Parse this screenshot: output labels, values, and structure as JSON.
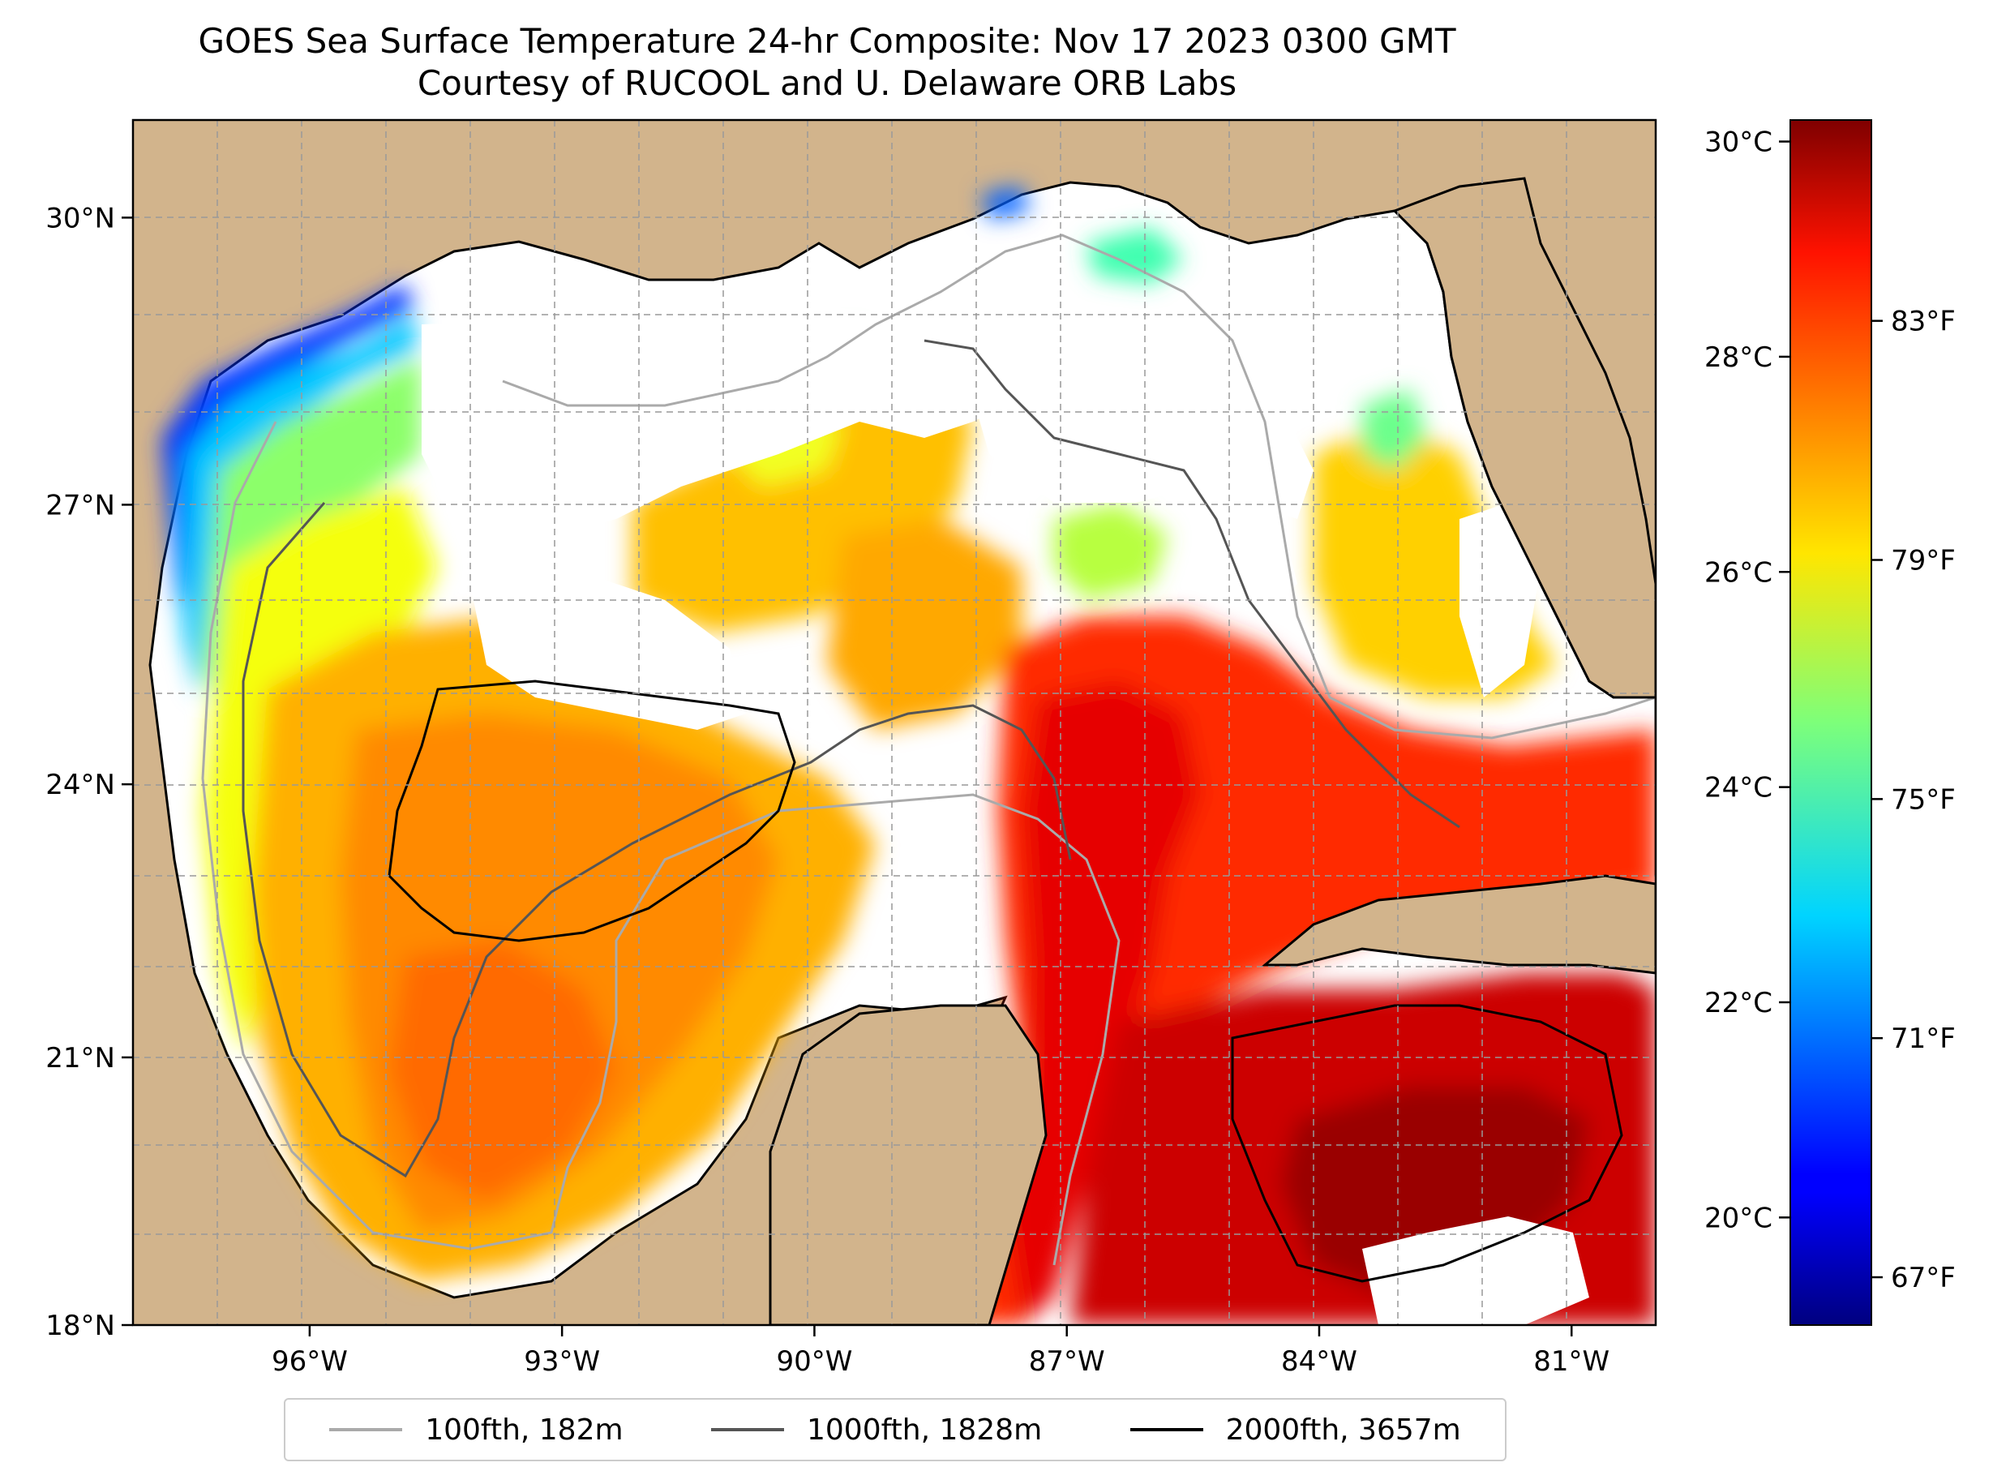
{
  "title": "GOES Sea Surface Temperature 24-hr Composite: Nov 17 2023 0300 GMT",
  "subtitle": "Courtesy of RUCOOL and U. Delaware ORB Labs",
  "map": {
    "lon_range": [
      -98.1,
      -80.0
    ],
    "lat_range": [
      18.0,
      31.0
    ],
    "lat_ticks": [
      {
        "value": 30,
        "label": "30°N"
      },
      {
        "value": 27,
        "label": "27°N"
      },
      {
        "value": 24,
        "label": "24°N"
      },
      {
        "value": 21,
        "label": "21°N"
      },
      {
        "value": 18,
        "label": "18°N"
      }
    ],
    "lon_ticks": [
      {
        "value": -96,
        "label": "96°W"
      },
      {
        "value": -93,
        "label": "93°W"
      },
      {
        "value": -90,
        "label": "90°W"
      },
      {
        "value": -87,
        "label": "87°W"
      },
      {
        "value": -84,
        "label": "84°W"
      },
      {
        "value": -81,
        "label": "81°W"
      }
    ],
    "land_color": "#d2b48c",
    "no_data_color": "#ffffff"
  },
  "colorbar": {
    "range_c": [
      19.0,
      30.2
    ],
    "celsius_ticks": [
      {
        "value": 30,
        "label": "30°C"
      },
      {
        "value": 28,
        "label": "28°C"
      },
      {
        "value": 26,
        "label": "26°C"
      },
      {
        "value": 24,
        "label": "24°C"
      },
      {
        "value": 22,
        "label": "22°C"
      },
      {
        "value": 20,
        "label": "20°C"
      }
    ],
    "fahrenheit_ticks": [
      {
        "value": 83,
        "label": "83°F"
      },
      {
        "value": 79,
        "label": "79°F"
      },
      {
        "value": 75,
        "label": "75°F"
      },
      {
        "value": 71,
        "label": "71°F"
      },
      {
        "value": 67,
        "label": "67°F"
      }
    ],
    "colormap": "jet"
  },
  "legend": [
    {
      "label": "100fth, 182m",
      "color": "#aaaaaa"
    },
    {
      "label": "1000fth, 1828m",
      "color": "#555555"
    },
    {
      "label": "2000fth, 3657m",
      "color": "#000000"
    }
  ]
}
